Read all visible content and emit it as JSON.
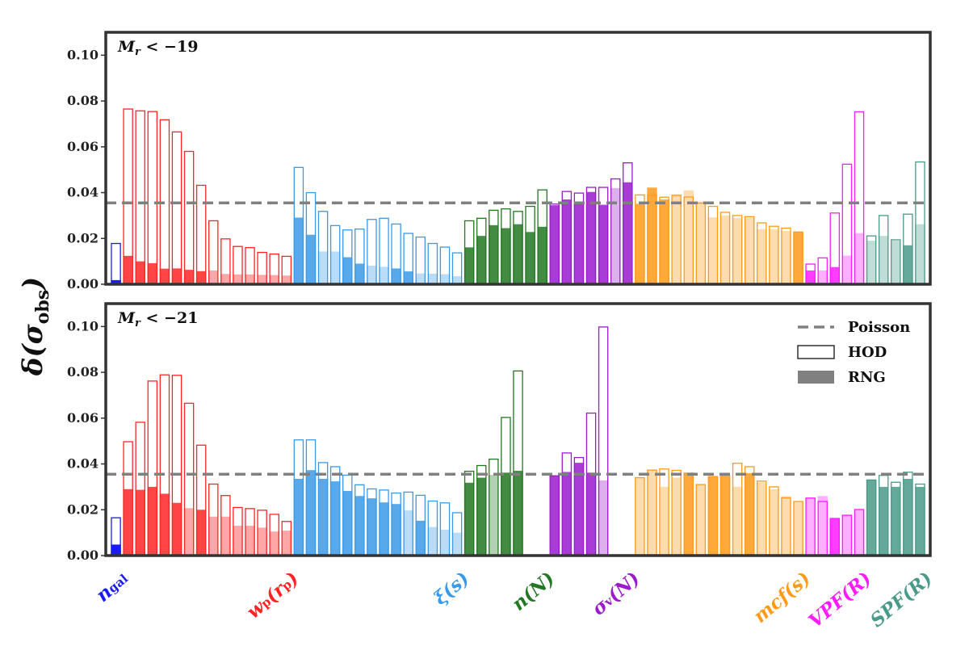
{
  "chart_data": {
    "type": "bar",
    "ylabel": "δ(σ_obs)",
    "ylim": [
      0,
      0.11
    ],
    "yticks": [
      "0.00",
      "0.02",
      "0.04",
      "0.06",
      "0.08",
      "0.10"
    ],
    "poisson": 0.0355,
    "legend": {
      "placement": "top-right (lower panel)",
      "entries": [
        {
          "key": "poisson",
          "label": "Poisson"
        },
        {
          "key": "hod",
          "label": "HOD"
        },
        {
          "key": "rng",
          "label": "RNG"
        }
      ]
    },
    "groups": [
      {
        "key": "ngal",
        "label": "n",
        "sub": "gal",
        "color": "#1a1aff",
        "start": 0,
        "count": 1
      },
      {
        "key": "wp",
        "label": "w",
        "sub": "p",
        "suffix": "(r",
        "suffix_sub": "p",
        "suffix_end": ")",
        "color": "#ff2424",
        "start": 1,
        "count": 14
      },
      {
        "key": "xi",
        "label": "ξ(s)",
        "color": "#3a9ae8",
        "start": 15,
        "count": 14
      },
      {
        "key": "nN",
        "label": "n(N)",
        "color": "#227722",
        "start": 29,
        "count": 7
      },
      {
        "key": "sigv",
        "label": "σ",
        "sub": "v",
        "suffix": "(N)",
        "color": "#9a1acc",
        "start": 36,
        "count": 7
      },
      {
        "key": "mcf",
        "label": "mcf(s)",
        "color": "#ff9a1a",
        "start": 43,
        "count": 14
      },
      {
        "key": "vpf",
        "label": "VPF(R)",
        "color": "#ff1aff",
        "start": 57,
        "count": 5
      },
      {
        "key": "spf",
        "label": "SPF(R)",
        "color": "#4a9a8a",
        "start": 62,
        "count": 5
      }
    ],
    "panels": [
      {
        "title_main": "M",
        "title_sub": "r",
        "title_rest": " < −19",
        "hod": [
          0.0178,
          0.0765,
          0.0757,
          0.0754,
          0.0718,
          0.0665,
          0.058,
          0.0432,
          0.0277,
          0.0198,
          0.0165,
          0.016,
          0.0139,
          0.0132,
          0.0122,
          0.051,
          0.04,
          0.0318,
          0.0256,
          0.0237,
          0.0241,
          0.0283,
          0.0288,
          0.0263,
          0.0222,
          0.0206,
          0.0178,
          0.0162,
          0.0137,
          0.0277,
          0.0288,
          0.0323,
          0.0329,
          0.0318,
          0.034,
          0.0412,
          0.035,
          0.0405,
          0.0398,
          0.0423,
          0.0423,
          0.046,
          0.053,
          0.039,
          0.0388,
          0.038,
          0.0388,
          0.0381,
          0.0354,
          0.034,
          0.0314,
          0.03,
          0.0295,
          0.0268,
          0.0253,
          0.0245,
          0.0228,
          0.0088,
          0.0115,
          0.0311,
          0.0524,
          0.0753,
          0.0211,
          0.03,
          0.0194,
          0.0306,
          0.0534
        ],
        "rng": [
          0.0018,
          0.0124,
          0.01,
          0.0092,
          0.0068,
          0.0069,
          0.0063,
          0.0057,
          0.006,
          0.0045,
          0.0043,
          0.0043,
          0.0041,
          0.004,
          0.0038,
          0.0291,
          0.0216,
          0.0143,
          0.0143,
          0.0118,
          0.009,
          0.0081,
          0.0076,
          0.0069,
          0.0056,
          0.0047,
          0.0046,
          0.0044,
          0.0035,
          0.0161,
          0.0211,
          0.0258,
          0.0245,
          0.0262,
          0.0228,
          0.0251,
          0.0345,
          0.037,
          0.0355,
          0.0403,
          0.0347,
          0.042,
          0.0445,
          0.0351,
          0.0422,
          0.037,
          0.0393,
          0.041,
          0.0362,
          0.0292,
          0.03,
          0.029,
          0.029,
          0.0241,
          0.024,
          0.0233,
          0.0228,
          0.006,
          0.006,
          0.0075,
          0.0125,
          0.0223,
          0.019,
          0.0211,
          0.019,
          0.017,
          0.0262
        ],
        "rng_alpha": [
          1,
          0.85,
          0.85,
          0.85,
          0.85,
          0.85,
          0.85,
          0.85,
          0.4,
          0.4,
          0.4,
          0.4,
          0.4,
          0.4,
          0.4,
          0.85,
          0.85,
          0.35,
          0.35,
          0.85,
          0.85,
          0.35,
          0.35,
          0.85,
          0.85,
          0.35,
          0.35,
          0.35,
          0.35,
          0.85,
          0.85,
          0.85,
          0.85,
          0.85,
          0.85,
          0.85,
          0.85,
          0.85,
          0.85,
          0.85,
          0.85,
          0.35,
          0.85,
          0.85,
          0.85,
          0.85,
          0.35,
          0.35,
          0.35,
          0.35,
          0.35,
          0.35,
          0.35,
          0.35,
          0.35,
          0.35,
          0.85,
          0.85,
          0.35,
          0.85,
          0.35,
          0.35,
          0.35,
          0.35,
          0.35,
          0.85,
          0.35
        ]
      },
      {
        "title_main": "M",
        "title_sub": "r",
        "title_rest": " < −21",
        "hod": [
          0.0165,
          0.0497,
          0.0582,
          0.0762,
          0.0789,
          0.0787,
          0.0665,
          0.0482,
          0.0312,
          0.0262,
          0.021,
          0.0205,
          0.0198,
          0.018,
          0.0149,
          0.0505,
          0.0505,
          0.0406,
          0.0388,
          0.0351,
          0.0309,
          0.0291,
          0.0286,
          0.0273,
          0.0277,
          0.0263,
          0.0238,
          0.023,
          0.0187,
          0.0368,
          0.0393,
          0.0421,
          0.0603,
          0.0806,
          0,
          0,
          0.0348,
          0.0448,
          0.0428,
          0.0622,
          0.0998,
          0,
          0,
          0.034,
          0.0373,
          0.0378,
          0.0372,
          0.036,
          0.031,
          0.0345,
          0.035,
          0.0403,
          0.0388,
          0.0325,
          0.03,
          0.0252,
          0.0236,
          0.0251,
          0.0236,
          0.0162,
          0.0176,
          0.0201,
          0.033,
          0.035,
          0.032,
          0.0364,
          0.0312
        ],
        "rng": [
          0.0048,
          0.029,
          0.0287,
          0.03,
          0.027,
          0.023,
          0.0207,
          0.02,
          0.017,
          0.017,
          0.013,
          0.013,
          0.0122,
          0.0105,
          0.0109,
          0.0335,
          0.0373,
          0.0335,
          0.0324,
          0.0282,
          0.026,
          0.025,
          0.0232,
          0.0225,
          0.0197,
          0.0152,
          0.0125,
          0.0113,
          0.01,
          0.0318,
          0.034,
          0.0352,
          0.0362,
          0.037,
          0,
          0,
          0.035,
          0.0365,
          0.0405,
          0.0362,
          0.0328,
          0,
          0,
          0.034,
          0.0375,
          0.03,
          0.034,
          0.036,
          0.031,
          0.0345,
          0.035,
          0.03,
          0.036,
          0.032,
          0.029,
          0.026,
          0.0236,
          0.0251,
          0.026,
          0.0162,
          0.0176,
          0.0201,
          0.033,
          0.03,
          0.03,
          0.0335,
          0.03
        ],
        "rng_alpha": [
          1,
          0.85,
          0.85,
          0.85,
          0.85,
          0.85,
          0.4,
          0.85,
          0.4,
          0.4,
          0.4,
          0.4,
          0.4,
          0.4,
          0.4,
          0.85,
          0.85,
          0.85,
          0.85,
          0.85,
          0.85,
          0.85,
          0.85,
          0.85,
          0.35,
          0.85,
          0.35,
          0.35,
          0.35,
          0.85,
          0.85,
          0.35,
          0.85,
          0.85,
          0.85,
          0.85,
          0.85,
          0.85,
          0.85,
          0.85,
          0.35,
          0.85,
          0.85,
          0.35,
          0.35,
          0.35,
          0.35,
          0.85,
          0.35,
          0.85,
          0.85,
          0.35,
          0.85,
          0.35,
          0.35,
          0.35,
          0.35,
          0.35,
          0.35,
          0.85,
          0.35,
          0.35,
          0.85,
          0.85,
          0.85,
          0.85,
          0.85
        ]
      }
    ]
  }
}
